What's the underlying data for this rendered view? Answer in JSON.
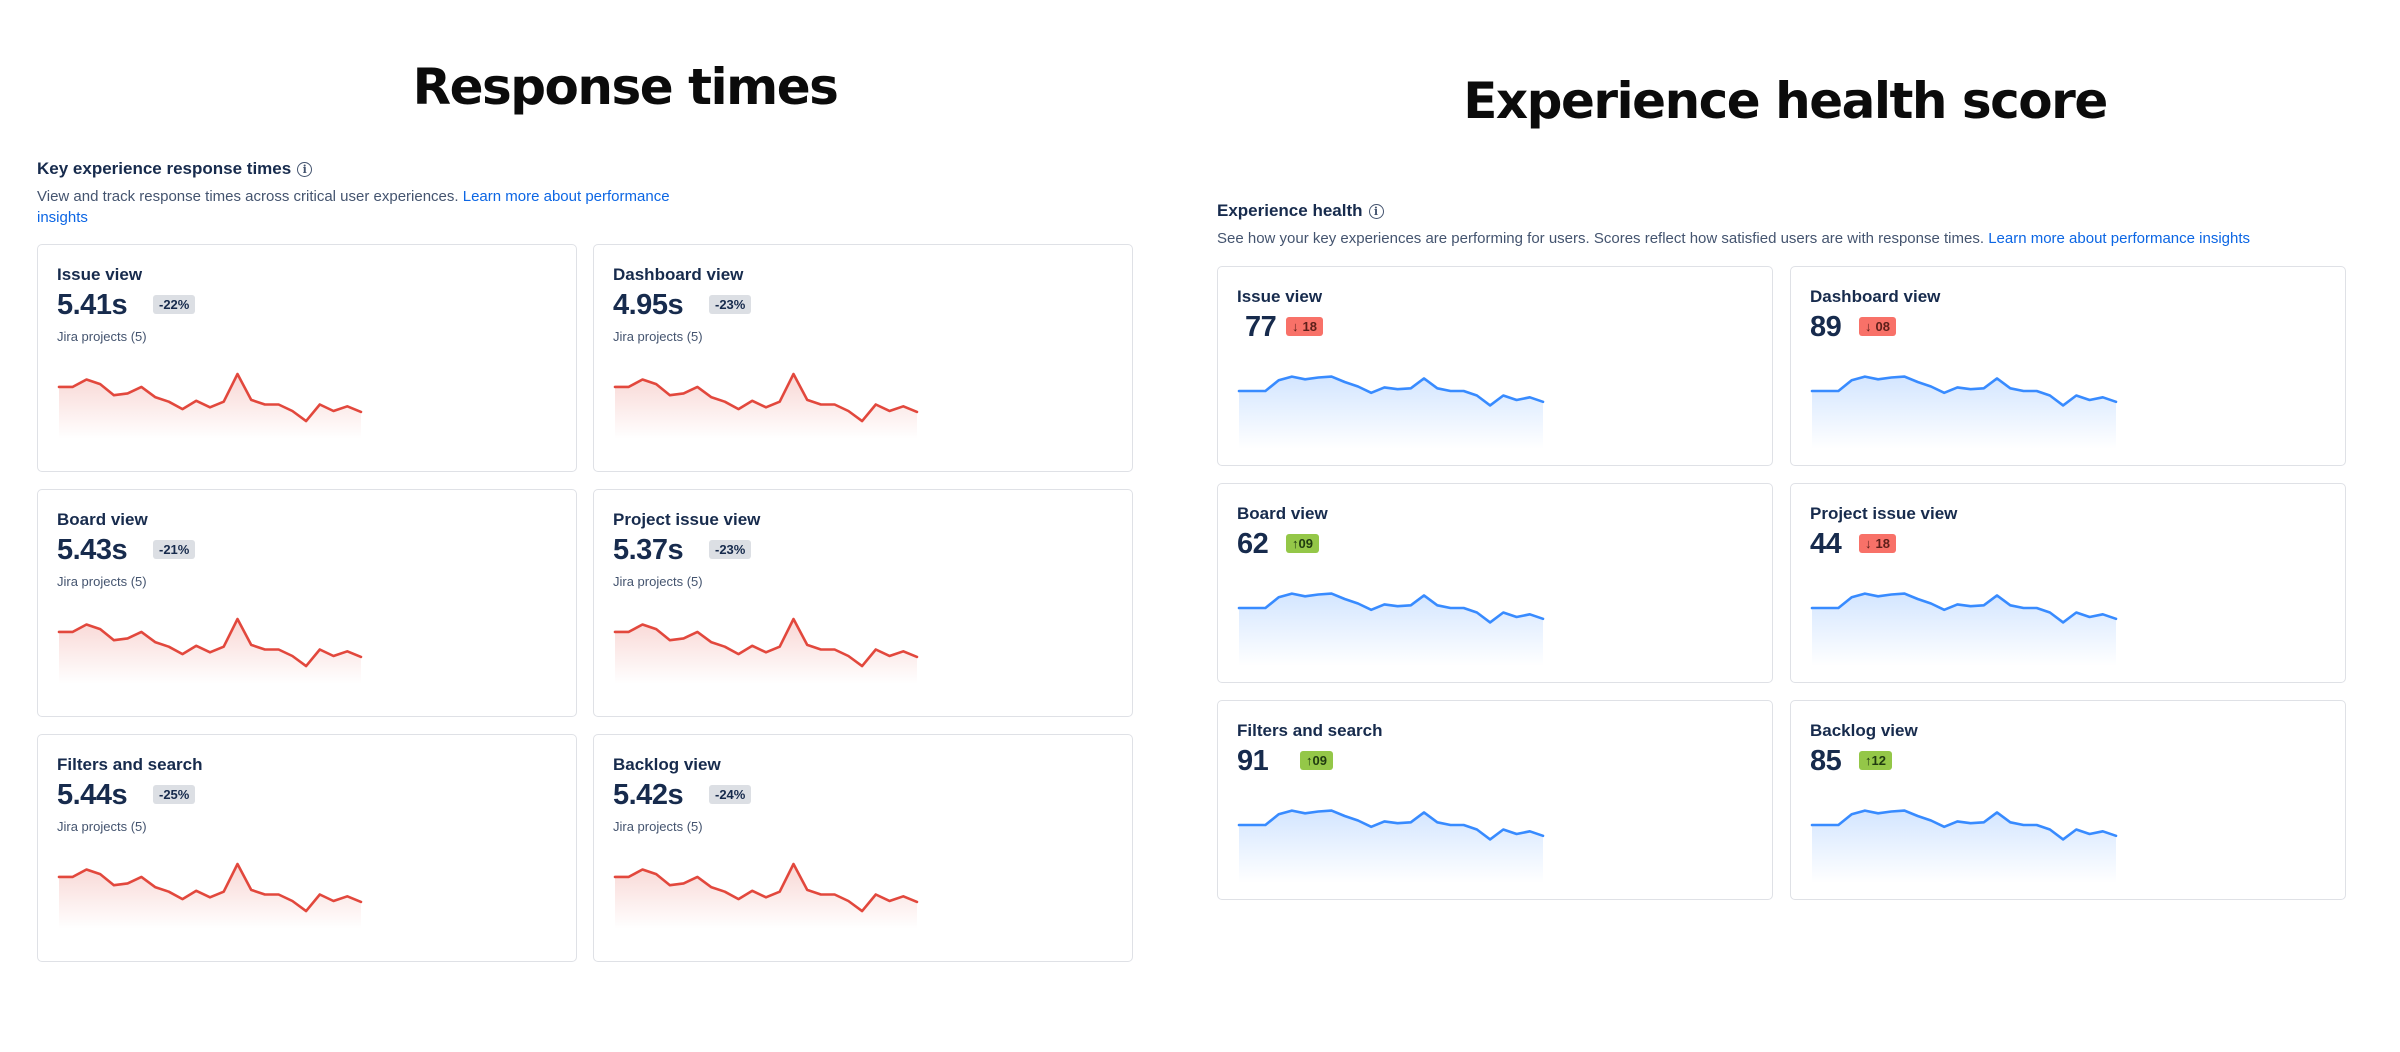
{
  "response_times": {
    "title": "Response times",
    "section_title": "Key experience response times",
    "description": "View and track response times across critical user experiences.",
    "link": "Learn more about performance insights",
    "cards": [
      {
        "title": "Issue view",
        "value": "5.41s",
        "change": "-22%",
        "sub": "Jira projects (5)"
      },
      {
        "title": "Dashboard view",
        "value": "4.95s",
        "change": "-23%",
        "sub": "Jira projects (5)"
      },
      {
        "title": "Board view",
        "value": "5.43s",
        "change": "-21%",
        "sub": "Jira projects (5)"
      },
      {
        "title": "Project issue view",
        "value": "5.37s",
        "change": "-23%",
        "sub": "Jira projects (5)"
      },
      {
        "title": "Filters and search",
        "value": "5.44s",
        "change": "-25%",
        "sub": "Jira projects (5)"
      },
      {
        "title": "Backlog view",
        "value": "5.42s",
        "change": "-24%",
        "sub": "Jira projects (5)"
      }
    ],
    "line_color": "#e2483d",
    "trend": [
      52,
      52,
      60,
      55,
      43,
      45,
      52,
      41,
      36,
      28,
      37,
      30,
      36,
      66,
      38,
      33,
      33,
      26,
      15,
      33,
      26,
      31,
      25
    ]
  },
  "health": {
    "title": "Experience health score",
    "section_title": "Experience health",
    "description": "See how your key experiences are performing for users. Scores reflect how satisfied users are with response times.",
    "link": "Learn more about performance insights",
    "cards": [
      {
        "title": "Issue view",
        "value": "77",
        "change": "18",
        "direction": "down"
      },
      {
        "title": "Dashboard view",
        "value": "89",
        "change": "08",
        "direction": "down"
      },
      {
        "title": "Board view",
        "value": "62",
        "change": "09",
        "direction": "up"
      },
      {
        "title": "Project issue view",
        "value": "44",
        "change": "18",
        "direction": "down"
      },
      {
        "title": "Filters and search",
        "value": "91",
        "change": "09",
        "direction": "up"
      },
      {
        "title": "Backlog view",
        "value": "85",
        "change": "12",
        "direction": "up"
      }
    ],
    "line_color": "#388bff",
    "trend": [
      60,
      60,
      60,
      72,
      76,
      73,
      75,
      76,
      70,
      65,
      58,
      64,
      62,
      63,
      74,
      63,
      60,
      60,
      55,
      44,
      55,
      50,
      53,
      48
    ]
  }
}
